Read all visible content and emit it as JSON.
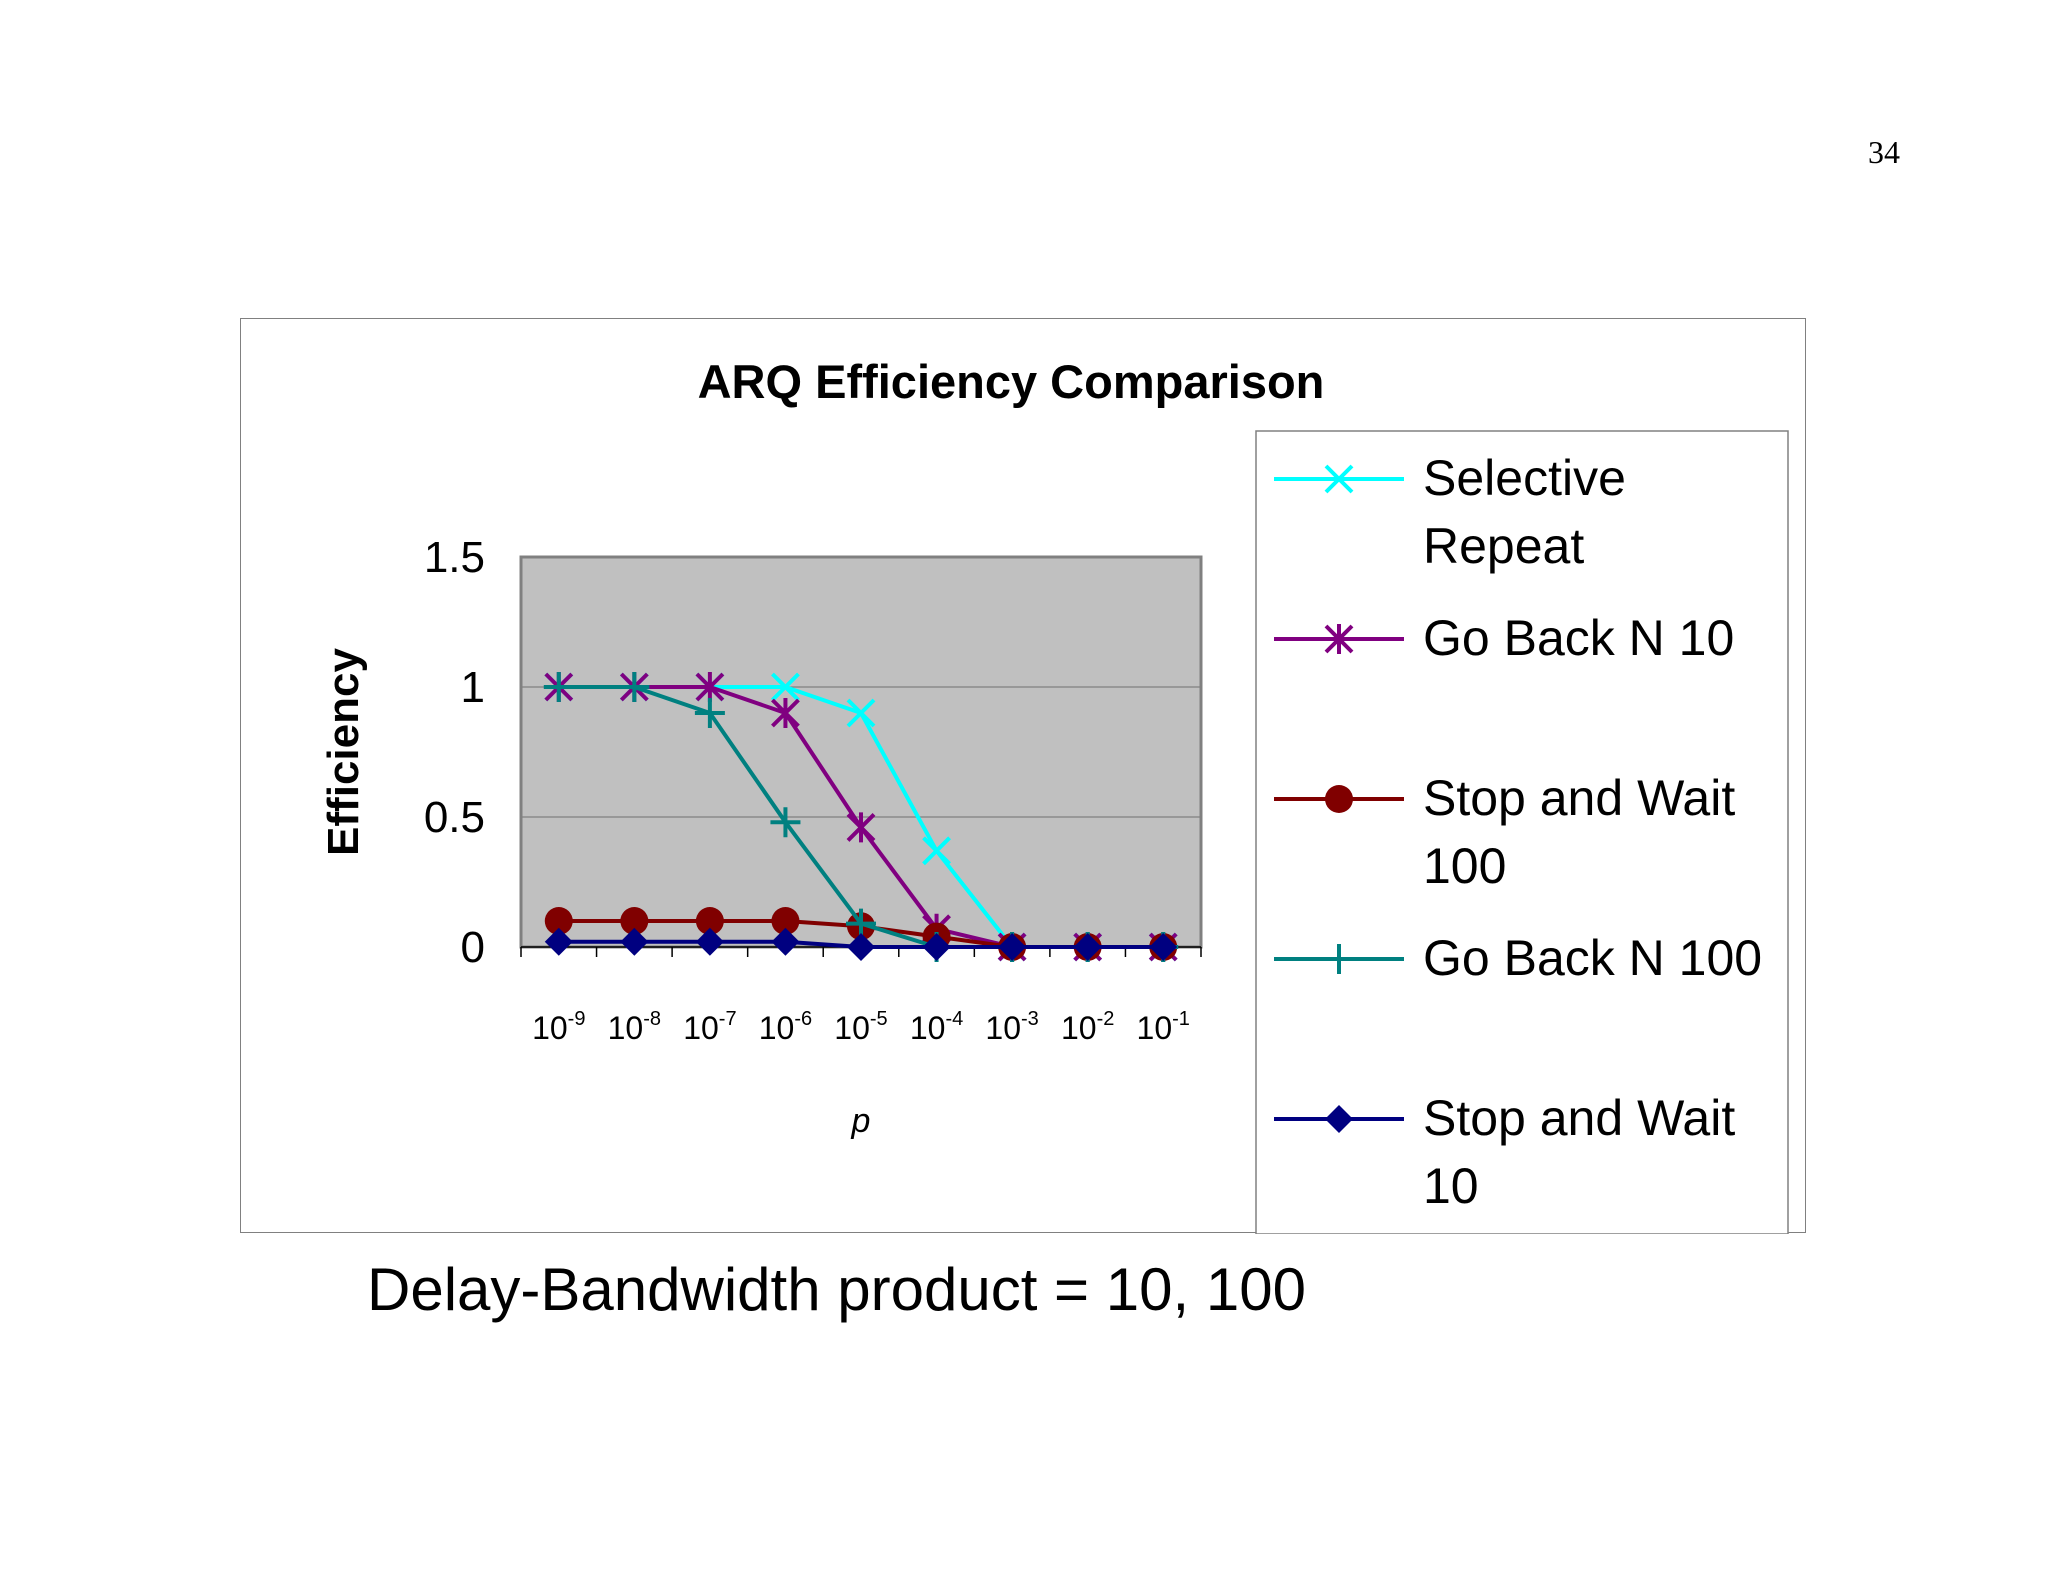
{
  "page_number": "34",
  "caption": "Delay-Bandwidth product = 10, 100",
  "chart_data": {
    "type": "line",
    "title": "ARQ Efficiency Comparison",
    "xlabel": "p",
    "ylabel": "Efficiency",
    "x_scale": "log",
    "categories": [
      "10-9",
      "10-8",
      "10-7",
      "10-6",
      "10-5",
      "10-4",
      "10-3",
      "10-2",
      "10-1"
    ],
    "x_tick_labels": [
      {
        "base": "10",
        "exp": "-9"
      },
      {
        "base": "10",
        "exp": "-8"
      },
      {
        "base": "10",
        "exp": "-7"
      },
      {
        "base": "10",
        "exp": "-6"
      },
      {
        "base": "10",
        "exp": "-5"
      },
      {
        "base": "10",
        "exp": "-4"
      },
      {
        "base": "10",
        "exp": "-3"
      },
      {
        "base": "10",
        "exp": "-2"
      },
      {
        "base": "10",
        "exp": "-1"
      }
    ],
    "y_ticks": [
      "0",
      "0.5",
      "1",
      "1.5"
    ],
    "ylim": [
      0,
      1.5
    ],
    "grid": true,
    "plot_background": "#c0c0c0",
    "legend_position": "right",
    "series": [
      {
        "name": "Selective Repeat",
        "color": "#00ffff",
        "marker": "x",
        "values": [
          1,
          1,
          1,
          1,
          0.9,
          0.37,
          0,
          0,
          0
        ]
      },
      {
        "name": "Go Back N 10",
        "color": "#800080",
        "marker": "asterisk",
        "values": [
          1,
          1,
          1,
          0.9,
          0.46,
          0.07,
          0,
          0,
          0
        ]
      },
      {
        "name": "Stop and Wait 100",
        "color": "#800000",
        "marker": "circle",
        "values": [
          0.1,
          0.1,
          0.1,
          0.1,
          0.08,
          0.04,
          0,
          0,
          0
        ]
      },
      {
        "name": "Go Back N 100",
        "color": "#008080",
        "marker": "plus",
        "values": [
          1,
          1,
          0.9,
          0.48,
          0.09,
          0,
          0,
          0,
          0
        ]
      },
      {
        "name": "Stop and Wait 10",
        "color": "#000080",
        "marker": "diamond",
        "values": [
          0.02,
          0.02,
          0.02,
          0.02,
          0,
          0,
          0,
          0,
          0
        ]
      }
    ]
  }
}
